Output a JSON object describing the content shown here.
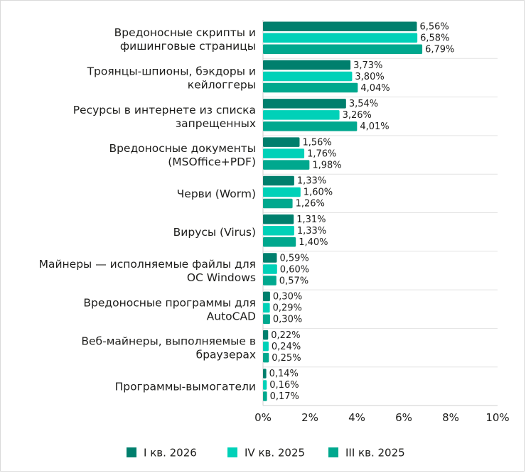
{
  "chart_data": {
    "type": "bar",
    "orientation": "horizontal",
    "categories": [
      [
        "Вредоносные скрипты и",
        "фишинговые страницы"
      ],
      [
        "Троянцы-шпионы, бэкдоры и",
        "кейлоггеры"
      ],
      [
        "Ресурсы в интернете из списка",
        "запрещенных"
      ],
      [
        "Вредоносные документы",
        "(MSOffice+PDF)"
      ],
      [
        "Черви (Worm)"
      ],
      [
        "Вирусы (Virus)"
      ],
      [
        "Майнеры — исполняемые файлы для",
        "ОС Windows"
      ],
      [
        "Вредоносные программы для",
        "AutoCAD"
      ],
      [
        "Веб-майнеры, выполняемые в",
        "браузерах"
      ],
      [
        "Программы-вымогатели"
      ]
    ],
    "series": [
      {
        "name": "I кв. 2026",
        "color": "#007f6d",
        "values": [
          6.56,
          3.73,
          3.54,
          1.56,
          1.33,
          1.31,
          0.59,
          0.3,
          0.22,
          0.14
        ],
        "labels": [
          "6,56%",
          "3,73%",
          "3,54%",
          "1,56%",
          "1,33%",
          "1,31%",
          "0,59%",
          "0,30%",
          "0,22%",
          "0,14%"
        ]
      },
      {
        "name": "IV кв. 2025",
        "color": "#00d1b8",
        "values": [
          6.58,
          3.8,
          3.26,
          1.76,
          1.6,
          1.33,
          0.6,
          0.29,
          0.24,
          0.16
        ],
        "labels": [
          "6,58%",
          "3,80%",
          "3,26%",
          "1,76%",
          "1,60%",
          "1,33%",
          "0,60%",
          "0,29%",
          "0,24%",
          "0,16%"
        ]
      },
      {
        "name": "III кв. 2025",
        "color": "#00a88e",
        "values": [
          6.79,
          4.04,
          4.01,
          1.98,
          1.26,
          1.4,
          0.57,
          0.3,
          0.25,
          0.17
        ],
        "labels": [
          "6,79%",
          "4,04%",
          "4,01%",
          "1,98%",
          "1,26%",
          "1,40%",
          "0,57%",
          "0,30%",
          "0,25%",
          "0,17%"
        ]
      }
    ],
    "xlim": [
      0,
      10
    ],
    "xticks": [
      0,
      2,
      4,
      6,
      8,
      10
    ],
    "xtick_labels": [
      "0%",
      "2%",
      "4%",
      "6%",
      "8%",
      "10%"
    ],
    "grid": "horizontal separators between categories",
    "legend": "bottom"
  }
}
